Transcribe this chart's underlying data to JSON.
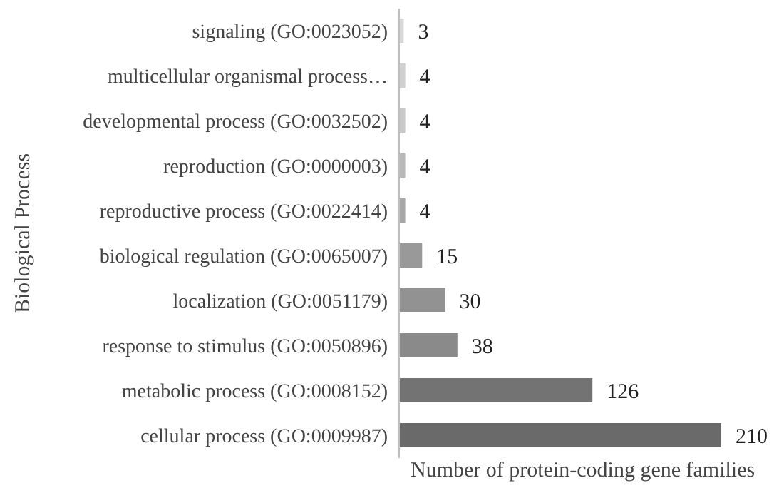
{
  "chart_data": {
    "type": "bar",
    "orientation": "horizontal",
    "xlabel": "Number of protein-coding gene families",
    "ylabel": "Biological Process",
    "categories": [
      "signaling (GO:0023052)",
      "multicellular organismal process…",
      "developmental process (GO:0032502)",
      "reproduction (GO:0000003)",
      "reproductive process (GO:0022414)",
      "biological regulation (GO:0065007)",
      "localization (GO:0051179)",
      "response to stimulus (GO:0050896)",
      "metabolic process (GO:0008152)",
      "cellular process (GO:0009987)"
    ],
    "values": [
      3,
      4,
      4,
      4,
      4,
      15,
      30,
      38,
      126,
      210
    ],
    "colors": [
      "#d8d8d8",
      "#d0d0d0",
      "#c8c8c8",
      "#b8b8b8",
      "#a8a8a8",
      "#999999",
      "#929292",
      "#8a8a8a",
      "#737373",
      "#6a6a6a"
    ],
    "data_labels": true
  }
}
